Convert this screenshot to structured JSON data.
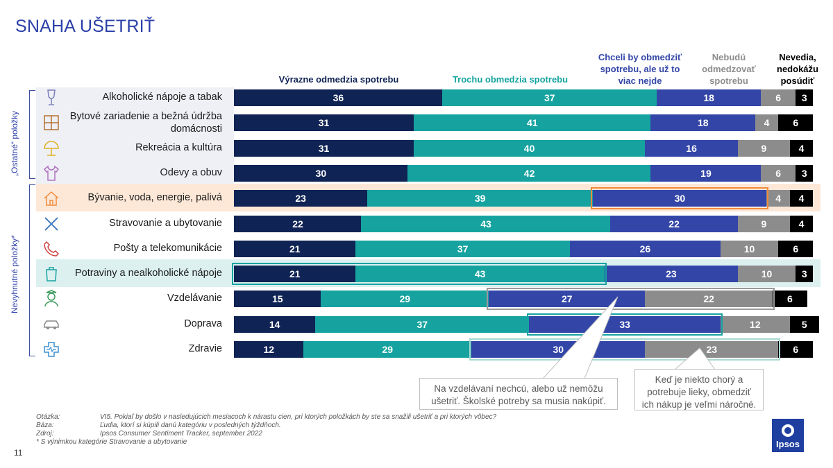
{
  "title": "SNAHA UŠETRIŤ",
  "legend": [
    {
      "label": "Výrazne odmedzia spotrebu",
      "color": "#0f2354"
    },
    {
      "label": "Trochu obmedzia spotrebu",
      "color": "#16a3a0"
    },
    {
      "label": "Chceli by obmedziť spotrebu, ale už to viac nejde",
      "color": "#3346a8"
    },
    {
      "label": "Nebudú odmedzovať spotrebu",
      "color": "#8c8c8c"
    },
    {
      "label": "Nevedia, nedokážu posúdiť",
      "color": "#000000"
    }
  ],
  "groups": [
    {
      "label": "„Ostatné“ položky"
    },
    {
      "label": "Nevyhnutné položky*"
    }
  ],
  "chart_data": {
    "type": "bar",
    "orientation": "horizontal",
    "stacked": true,
    "title": "SNAHA UŠETRIŤ",
    "xlim": [
      0,
      100
    ],
    "categories": [
      "Alkoholické nápoje a tabak",
      "Bytové zariadenie a bežná údržba domácnosti",
      "Rekreácia a kultúra",
      "Odevy a obuv",
      "Bývanie, voda, energie, palivá",
      "Stravovanie a ubytovanie",
      "Pošty a telekomunikácie",
      "Potraviny a nealkoholické nápoje",
      "Vzdelávanie",
      "Doprava",
      "Zdravie"
    ],
    "series": [
      {
        "name": "Výrazne odmedzia spotrebu",
        "values": [
          36,
          31,
          31,
          30,
          23,
          22,
          21,
          21,
          15,
          14,
          12
        ]
      },
      {
        "name": "Trochu obmedzia spotrebu",
        "values": [
          37,
          41,
          40,
          42,
          39,
          43,
          37,
          43,
          29,
          37,
          29
        ]
      },
      {
        "name": "Chceli by obmedziť spotrebu, ale už to viac nejde",
        "values": [
          18,
          18,
          16,
          19,
          30,
          22,
          26,
          23,
          27,
          33,
          30
        ]
      },
      {
        "name": "Nebudú odmedzovať spotrebu",
        "values": [
          6,
          4,
          9,
          6,
          4,
          9,
          10,
          10,
          22,
          12,
          23
        ]
      },
      {
        "name": "Nevedia, nedokážu posúdiť",
        "values": [
          3,
          6,
          4,
          3,
          4,
          4,
          6,
          3,
          6,
          5,
          6
        ]
      }
    ]
  },
  "callouts": [
    "Na vzdelávaní nechcú, alebo už nemôžu ušetriť. Školské potreby sa musia nakúpiť.",
    "Keď je niekto chorý a potrebuje lieky, obmedziť ich nákup je veľmi náročné."
  ],
  "footnotes": [
    {
      "key": "Otázka:",
      "text": "VI5. Pokiaľ by došlo v nasledujúcich mesiacoch k nárastu cien, pri ktorých položkách by ste sa snažili ušetriť a pri ktorých vôbec?"
    },
    {
      "key": "Báza:",
      "text": "Ľudia, ktorí si kúpili danú kategóriu v posledných týždňoch."
    },
    {
      "key": "Zdroj:",
      "text": "Ipsos Consumer Sentiment Tracker, september 2022"
    },
    {
      "key": "",
      "text": "* S výnimkou kategórie Stravovanie a ubytovanie"
    }
  ],
  "page_number": "11",
  "logo_text": "Ipsos",
  "icons": [
    "wine-glass-icon",
    "furniture-icon",
    "beach-umbrella-icon",
    "tshirt-icon",
    "house-icon",
    "cutlery-icon",
    "phone-icon",
    "grocery-bag-icon",
    "graduate-icon",
    "car-icon",
    "health-cross-icon"
  ]
}
